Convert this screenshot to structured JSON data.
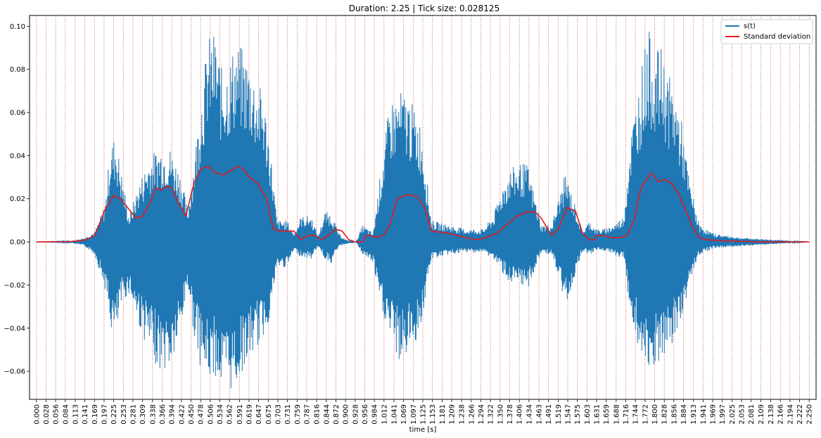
{
  "chart_data": {
    "type": "line",
    "title": "Duration: 2.25 | Tick size: 0.028125",
    "xlabel": "time [s]",
    "ylabel": "",
    "xlim": [
      -0.02,
      2.27
    ],
    "ylim": [
      -0.073,
      0.105
    ],
    "xticks": [
      0.0,
      0.028,
      0.056,
      0.084,
      0.113,
      0.141,
      0.169,
      0.197,
      0.225,
      0.253,
      0.281,
      0.309,
      0.338,
      0.366,
      0.394,
      0.422,
      0.45,
      0.478,
      0.506,
      0.534,
      0.562,
      0.591,
      0.619,
      0.647,
      0.675,
      0.703,
      0.731,
      0.759,
      0.787,
      0.816,
      0.844,
      0.872,
      0.9,
      0.928,
      0.956,
      0.984,
      1.012,
      1.041,
      1.069,
      1.097,
      1.125,
      1.153,
      1.181,
      1.209,
      1.238,
      1.266,
      1.294,
      1.322,
      1.35,
      1.378,
      1.406,
      1.434,
      1.463,
      1.491,
      1.519,
      1.547,
      1.575,
      1.603,
      1.631,
      1.659,
      1.688,
      1.716,
      1.744,
      1.772,
      1.8,
      1.828,
      1.856,
      1.884,
      1.913,
      1.941,
      1.969,
      1.997,
      2.025,
      2.053,
      2.081,
      2.109,
      2.138,
      2.166,
      2.194,
      2.222,
      2.25
    ],
    "xtick_labels": [
      "0.000",
      "0.028",
      "0.056",
      "0.084",
      "0.113",
      "0.141",
      "0.169",
      "0.197",
      "0.225",
      "0.253",
      "0.281",
      "0.309",
      "0.338",
      "0.366",
      "0.394",
      "0.422",
      "0.450",
      "0.478",
      "0.506",
      "0.534",
      "0.562",
      "0.591",
      "0.619",
      "0.647",
      "0.675",
      "0.703",
      "0.731",
      "0.759",
      "0.787",
      "0.816",
      "0.844",
      "0.872",
      "0.900",
      "0.928",
      "0.956",
      "0.984",
      "1.012",
      "1.041",
      "1.069",
      "1.097",
      "1.125",
      "1.153",
      "1.181",
      "1.209",
      "1.238",
      "1.266",
      "1.294",
      "1.322",
      "1.350",
      "1.378",
      "1.406",
      "1.434",
      "1.463",
      "1.491",
      "1.519",
      "1.547",
      "1.575",
      "1.603",
      "1.631",
      "1.659",
      "1.688",
      "1.716",
      "1.744",
      "1.772",
      "1.800",
      "1.828",
      "1.856",
      "1.884",
      "1.913",
      "1.941",
      "1.969",
      "1.997",
      "2.025",
      "2.053",
      "2.081",
      "2.109",
      "2.138",
      "2.166",
      "2.194",
      "2.222",
      "2.250"
    ],
    "yticks": [
      -0.06,
      -0.04,
      -0.02,
      0.0,
      0.02,
      0.04,
      0.06,
      0.08,
      0.1
    ],
    "ytick_labels": [
      "−0.06",
      "−0.04",
      "−0.02",
      "0.00",
      "0.02",
      "0.04",
      "0.06",
      "0.08",
      "0.10"
    ],
    "vlines": {
      "color": "#d62728",
      "style": "dotted",
      "at": "xticks"
    },
    "legend": {
      "position": "top-right"
    },
    "series": [
      {
        "name": "s(t)",
        "color": "#1f77b4",
        "kind": "waveform-envelope",
        "t": [
          0.0,
          0.1,
          0.14,
          0.17,
          0.2,
          0.215,
          0.23,
          0.25,
          0.27,
          0.3,
          0.33,
          0.36,
          0.39,
          0.42,
          0.44,
          0.46,
          0.48,
          0.5,
          0.52,
          0.54,
          0.56,
          0.58,
          0.6,
          0.62,
          0.64,
          0.66,
          0.68,
          0.7,
          0.73,
          0.75,
          0.77,
          0.8,
          0.82,
          0.84,
          0.86,
          0.88,
          0.9,
          0.93,
          0.95,
          0.98,
          1.0,
          1.03,
          1.06,
          1.08,
          1.1,
          1.12,
          1.15,
          1.2,
          1.25,
          1.3,
          1.33,
          1.36,
          1.38,
          1.41,
          1.43,
          1.45,
          1.47,
          1.5,
          1.52,
          1.54,
          1.56,
          1.59,
          1.61,
          1.63,
          1.65,
          1.68,
          1.71,
          1.73,
          1.76,
          1.78,
          1.8,
          1.82,
          1.84,
          1.86,
          1.88,
          1.9,
          1.93,
          1.97,
          2.05,
          2.15,
          2.25
        ],
        "upper": [
          0.0,
          0.0004,
          0.002,
          0.005,
          0.018,
          0.045,
          0.05,
          0.03,
          0.012,
          0.028,
          0.04,
          0.045,
          0.044,
          0.032,
          0.015,
          0.04,
          0.07,
          0.095,
          0.098,
          0.08,
          0.085,
          0.093,
          0.09,
          0.085,
          0.075,
          0.07,
          0.046,
          0.01,
          0.01,
          0.004,
          0.012,
          0.012,
          0.003,
          0.014,
          0.013,
          0.004,
          0.001,
          0.0,
          0.008,
          0.004,
          0.03,
          0.066,
          0.07,
          0.069,
          0.062,
          0.055,
          0.01,
          0.008,
          0.006,
          0.006,
          0.012,
          0.028,
          0.034,
          0.037,
          0.036,
          0.022,
          0.008,
          0.008,
          0.02,
          0.032,
          0.022,
          0.005,
          0.01,
          0.006,
          0.006,
          0.008,
          0.012,
          0.05,
          0.08,
          0.1,
          0.089,
          0.09,
          0.078,
          0.07,
          0.055,
          0.03,
          0.008,
          0.004,
          0.002,
          0.001,
          0.0
        ],
        "lower": [
          0.0,
          -0.0004,
          -0.002,
          -0.006,
          -0.022,
          -0.04,
          -0.046,
          -0.028,
          -0.024,
          -0.04,
          -0.052,
          -0.06,
          -0.06,
          -0.043,
          -0.02,
          -0.045,
          -0.06,
          -0.065,
          -0.062,
          -0.07,
          -0.07,
          -0.068,
          -0.06,
          -0.055,
          -0.05,
          -0.045,
          -0.035,
          -0.012,
          -0.012,
          -0.004,
          -0.007,
          -0.008,
          -0.002,
          -0.008,
          -0.01,
          -0.002,
          -0.001,
          0.0,
          -0.006,
          -0.01,
          -0.03,
          -0.045,
          -0.058,
          -0.052,
          -0.048,
          -0.04,
          -0.008,
          -0.006,
          -0.005,
          -0.005,
          -0.008,
          -0.015,
          -0.02,
          -0.022,
          -0.022,
          -0.014,
          -0.005,
          -0.006,
          -0.017,
          -0.03,
          -0.02,
          -0.004,
          -0.006,
          -0.004,
          -0.004,
          -0.006,
          -0.008,
          -0.035,
          -0.055,
          -0.068,
          -0.058,
          -0.06,
          -0.052,
          -0.046,
          -0.035,
          -0.02,
          -0.006,
          -0.003,
          -0.002,
          -0.001,
          0.0
        ]
      },
      {
        "name": "Standard deviation",
        "color": "#e31a1c",
        "x": [
          0.0,
          0.1,
          0.14,
          0.17,
          0.2,
          0.225,
          0.245,
          0.27,
          0.29,
          0.31,
          0.33,
          0.35,
          0.365,
          0.38,
          0.395,
          0.41,
          0.435,
          0.46,
          0.48,
          0.5,
          0.52,
          0.545,
          0.565,
          0.585,
          0.6,
          0.62,
          0.645,
          0.67,
          0.69,
          0.71,
          0.73,
          0.75,
          0.77,
          0.78,
          0.79,
          0.81,
          0.83,
          0.85,
          0.87,
          0.89,
          0.91,
          0.93,
          0.95,
          0.96,
          0.975,
          0.99,
          1.01,
          1.03,
          1.05,
          1.08,
          1.11,
          1.13,
          1.15,
          1.2,
          1.25,
          1.28,
          1.31,
          1.34,
          1.37,
          1.4,
          1.43,
          1.45,
          1.47,
          1.5,
          1.52,
          1.545,
          1.57,
          1.59,
          1.61,
          1.625,
          1.63,
          1.65,
          1.67,
          1.7,
          1.72,
          1.74,
          1.76,
          1.79,
          1.81,
          1.83,
          1.85,
          1.87,
          1.89,
          1.91,
          1.93,
          1.95,
          2.0,
          2.1,
          2.25
        ],
        "y": [
          0.0,
          0.0002,
          0.0008,
          0.003,
          0.015,
          0.0215,
          0.02,
          0.015,
          0.011,
          0.012,
          0.018,
          0.025,
          0.024,
          0.026,
          0.025,
          0.019,
          0.012,
          0.028,
          0.034,
          0.035,
          0.032,
          0.031,
          0.033,
          0.035,
          0.034,
          0.03,
          0.027,
          0.02,
          0.006,
          0.005,
          0.005,
          0.005,
          0.001,
          0.002,
          0.003,
          0.003,
          0.001,
          0.003,
          0.006,
          0.005,
          0.001,
          0.0,
          0.0,
          0.003,
          0.003,
          0.002,
          0.003,
          0.008,
          0.02,
          0.022,
          0.021,
          0.016,
          0.005,
          0.004,
          0.002,
          0.001,
          0.002,
          0.004,
          0.008,
          0.012,
          0.014,
          0.014,
          0.011,
          0.003,
          0.006,
          0.016,
          0.014,
          0.004,
          0.001,
          0.001,
          0.003,
          0.003,
          0.002,
          0.002,
          0.003,
          0.01,
          0.025,
          0.032,
          0.028,
          0.029,
          0.027,
          0.022,
          0.015,
          0.007,
          0.002,
          0.001,
          0.0005,
          0.0,
          0.0
        ]
      }
    ]
  }
}
